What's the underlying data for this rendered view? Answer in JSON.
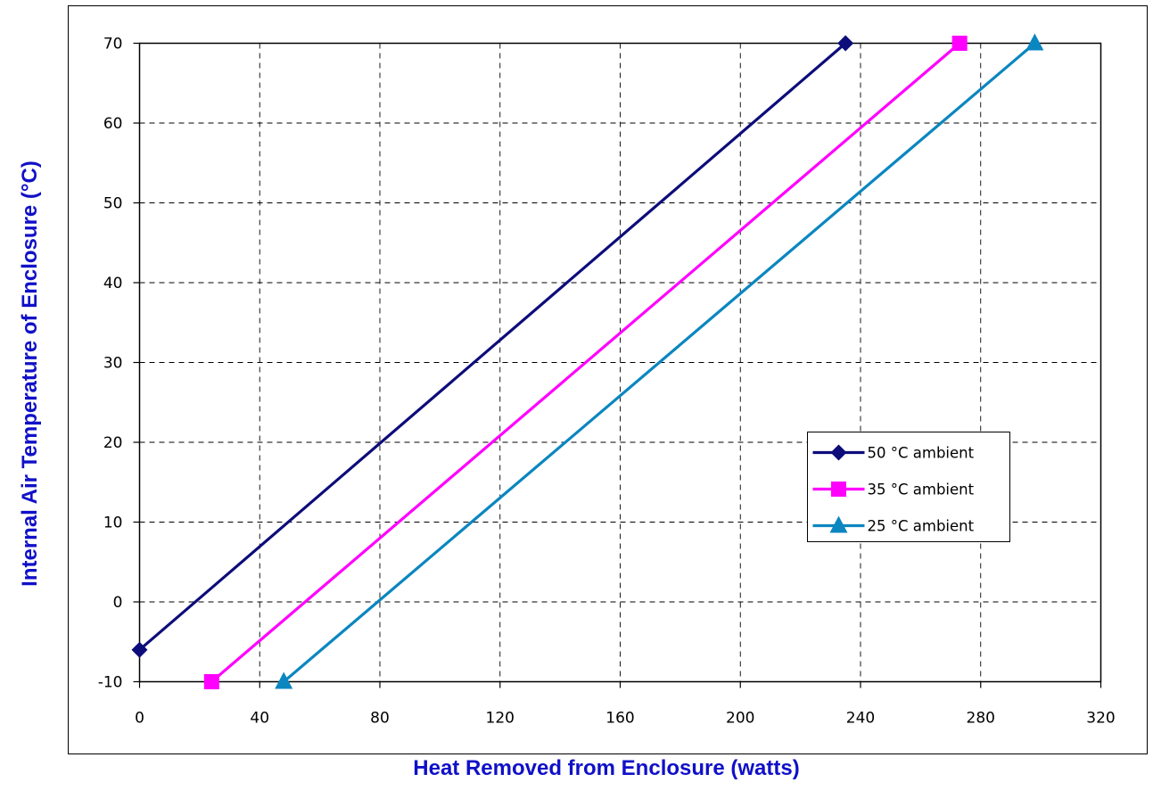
{
  "chart_data": {
    "type": "line",
    "title": "",
    "xlabel": "Heat Removed from Enclosure (watts)",
    "ylabel": "Internal Air Temperature of Enclosure (°C)",
    "xlim": [
      0,
      320
    ],
    "ylim": [
      -10,
      70
    ],
    "x_ticks": [
      0,
      40,
      80,
      120,
      160,
      200,
      240,
      280,
      320
    ],
    "y_ticks": [
      -10,
      0,
      10,
      20,
      30,
      40,
      50,
      60,
      70
    ],
    "grid": true,
    "grid_style": "dashed",
    "legend_position": "right-middle",
    "axis_title_color": "#1010C8",
    "series": [
      {
        "name": "50 °C ambient",
        "color": "#0C0C7A",
        "marker": "diamond",
        "x": [
          0,
          235
        ],
        "y": [
          -6,
          70
        ]
      },
      {
        "name": "35 °C ambient",
        "color": "#FF00FF",
        "marker": "square",
        "x": [
          24,
          273
        ],
        "y": [
          -10,
          70
        ]
      },
      {
        "name": "25 °C ambient",
        "color": "#0B86C0",
        "marker": "triangle",
        "x": [
          48,
          298
        ],
        "y": [
          -10,
          70
        ]
      }
    ]
  }
}
